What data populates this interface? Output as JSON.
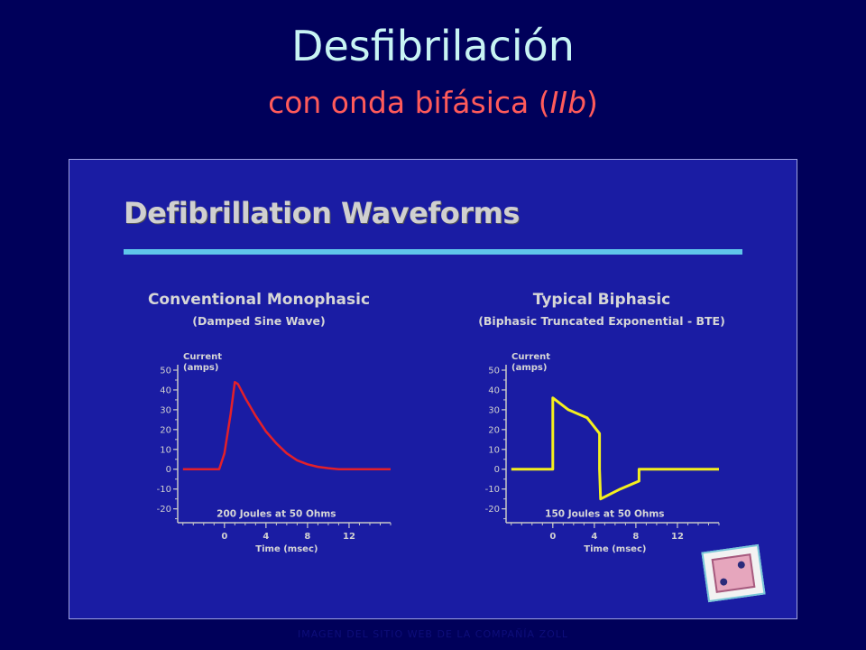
{
  "slide": {
    "title": "Desfibrilación",
    "subtitle_main": "con onda bifásica (",
    "subtitle_italic": "IIb",
    "subtitle_end": ")",
    "footer": "IMAGEN DEL SITIO WEB DE LA COMPAÑÍA ZOLL"
  },
  "inset": {
    "title": "Defibrillation Waveforms"
  },
  "colors": {
    "background": "#00005a",
    "inset": "#1a1ca3",
    "title": "#c8f4f4",
    "subtitle": "#ff5a5a",
    "rule": "#5fc6ea",
    "monophasic_line": "#e3202a",
    "biphasic_line": "#f4ef1e"
  },
  "chart_data": [
    {
      "type": "line",
      "title": "Conventional Monophasic",
      "subtitle": "(Damped Sine Wave)",
      "ylabel": "Current\n(amps)",
      "xlabel": "Time (msec)",
      "annotation": "200 Joules at 50 Ohms",
      "xlim": [
        -4.5,
        16
      ],
      "ylim": [
        -27,
        50
      ],
      "x_ticks": [
        0,
        4,
        8,
        12
      ],
      "y_ticks": [
        50,
        40,
        30,
        20,
        10,
        0,
        -10,
        -20
      ],
      "series": [
        {
          "points": [
            [
              -4,
              0
            ],
            [
              -0.5,
              0
            ],
            [
              0,
              8
            ],
            [
              0.6,
              28
            ],
            [
              1.0,
              44
            ],
            [
              1.3,
              43
            ],
            [
              2,
              36
            ],
            [
              3,
              27
            ],
            [
              4,
              19
            ],
            [
              5,
              13
            ],
            [
              6,
              8
            ],
            [
              7,
              4.5
            ],
            [
              8,
              2.5
            ],
            [
              9,
              1.2
            ],
            [
              10,
              0.5
            ],
            [
              11,
              0
            ],
            [
              16,
              0
            ]
          ]
        }
      ]
    },
    {
      "type": "line",
      "title": "Typical Biphasic",
      "subtitle": "(Biphasic Truncated Exponential - BTE)",
      "ylabel": "Current\n(amps)",
      "xlabel": "Time (msec)",
      "annotation": "150 Joules at 50 Ohms",
      "xlim": [
        -4.5,
        16
      ],
      "ylim": [
        -27,
        50
      ],
      "x_ticks": [
        0,
        4,
        8,
        12
      ],
      "y_ticks": [
        50,
        40,
        30,
        20,
        10,
        0,
        -10,
        -20
      ],
      "series": [
        {
          "points": [
            [
              -4,
              0
            ],
            [
              0,
              0
            ],
            [
              0,
              36
            ],
            [
              1.5,
              30
            ],
            [
              3.3,
              26
            ],
            [
              4.5,
              18
            ],
            [
              4.5,
              0
            ],
            [
              4.6,
              -15
            ],
            [
              6.5,
              -10
            ],
            [
              8.3,
              -6
            ],
            [
              8.3,
              0
            ],
            [
              16,
              0
            ]
          ]
        }
      ]
    }
  ]
}
